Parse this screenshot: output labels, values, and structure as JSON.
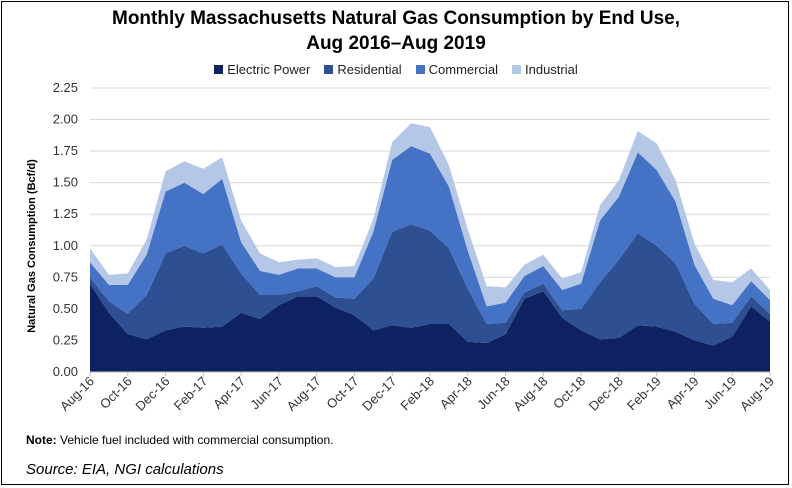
{
  "title_line1": "Monthly Massachusetts Natural Gas Consumption by End Use,",
  "title_line2": "Aug 2016–Aug 2019",
  "note_label": "Note:",
  "note_text": " Vehicle fuel included with commercial consumption.",
  "source": "Source: EIA, NGI calculations",
  "chart_data": {
    "type": "area",
    "stacked": true,
    "title": "Monthly Massachusetts Natural Gas Consumption by End Use, Aug 2016–Aug 2019",
    "xlabel": "",
    "ylabel": "Natural Gas Consumption (Bcf/d)",
    "ylim": [
      0,
      2.25
    ],
    "yticks": [
      "0.00",
      "0.25",
      "0.50",
      "0.75",
      "1.00",
      "1.25",
      "1.50",
      "1.75",
      "2.00",
      "2.25"
    ],
    "legend_position": "top",
    "grid": true,
    "x": [
      "Aug-16",
      "Sep-16",
      "Oct-16",
      "Nov-16",
      "Dec-16",
      "Jan-17",
      "Feb-17",
      "Mar-17",
      "Apr-17",
      "May-17",
      "Jun-17",
      "Jul-17",
      "Aug-17",
      "Sep-17",
      "Oct-17",
      "Nov-17",
      "Dec-17",
      "Jan-18",
      "Feb-18",
      "Mar-18",
      "Apr-18",
      "May-18",
      "Jun-18",
      "Jul-18",
      "Aug-18",
      "Sep-18",
      "Oct-18",
      "Nov-18",
      "Dec-18",
      "Jan-19",
      "Feb-19",
      "Mar-19",
      "Apr-19",
      "May-19",
      "Jun-19",
      "Jul-19",
      "Aug-19"
    ],
    "x_tick_labels": [
      "Aug-16",
      "Oct-16",
      "Dec-16",
      "Feb-17",
      "Apr-17",
      "Jun-17",
      "Aug-17",
      "Oct-17",
      "Dec-17",
      "Feb-18",
      "Apr-18",
      "Jun-18",
      "Aug-18",
      "Oct-18",
      "Dec-18",
      "Feb-19",
      "Apr-19",
      "Jun-19",
      "Aug-19"
    ],
    "series": [
      {
        "name": "Electric Power",
        "color": "#0e2160",
        "values": [
          0.7,
          0.47,
          0.3,
          0.26,
          0.33,
          0.36,
          0.35,
          0.36,
          0.47,
          0.42,
          0.53,
          0.6,
          0.6,
          0.51,
          0.45,
          0.33,
          0.37,
          0.35,
          0.38,
          0.38,
          0.24,
          0.23,
          0.3,
          0.58,
          0.64,
          0.43,
          0.33,
          0.26,
          0.27,
          0.37,
          0.36,
          0.32,
          0.25,
          0.21,
          0.28,
          0.52,
          0.4
        ]
      },
      {
        "name": "Residential",
        "color": "#2e4f92",
        "values": [
          0.05,
          0.09,
          0.16,
          0.35,
          0.61,
          0.64,
          0.59,
          0.65,
          0.31,
          0.19,
          0.08,
          0.04,
          0.08,
          0.08,
          0.13,
          0.41,
          0.74,
          0.82,
          0.74,
          0.6,
          0.42,
          0.15,
          0.09,
          0.05,
          0.06,
          0.06,
          0.17,
          0.45,
          0.62,
          0.73,
          0.64,
          0.54,
          0.29,
          0.17,
          0.11,
          0.08,
          0.06
        ]
      },
      {
        "name": "Commercial",
        "color": "#4472c4",
        "values": [
          0.12,
          0.13,
          0.23,
          0.32,
          0.49,
          0.5,
          0.47,
          0.52,
          0.25,
          0.19,
          0.16,
          0.18,
          0.14,
          0.16,
          0.17,
          0.37,
          0.57,
          0.62,
          0.61,
          0.49,
          0.3,
          0.14,
          0.16,
          0.13,
          0.14,
          0.16,
          0.2,
          0.49,
          0.5,
          0.64,
          0.6,
          0.49,
          0.31,
          0.2,
          0.14,
          0.12,
          0.11
        ]
      },
      {
        "name": "Industrial",
        "color": "#b4c7e7",
        "values": [
          0.11,
          0.08,
          0.09,
          0.12,
          0.16,
          0.17,
          0.2,
          0.17,
          0.17,
          0.14,
          0.1,
          0.07,
          0.08,
          0.08,
          0.09,
          0.1,
          0.14,
          0.18,
          0.21,
          0.17,
          0.17,
          0.16,
          0.12,
          0.09,
          0.09,
          0.09,
          0.09,
          0.12,
          0.13,
          0.17,
          0.21,
          0.17,
          0.17,
          0.15,
          0.18,
          0.1,
          0.08
        ]
      }
    ]
  }
}
